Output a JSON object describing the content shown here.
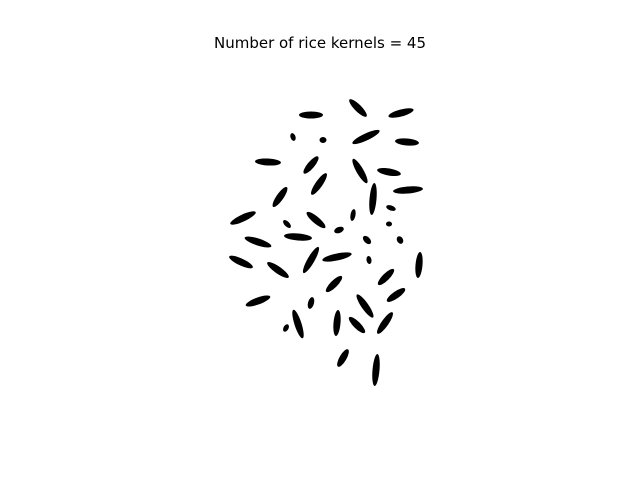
{
  "figure": {
    "title": "Number of rice kernels = 45"
  },
  "image": {
    "kernel_color": "#000000",
    "background_color": "#ffffff"
  }
}
